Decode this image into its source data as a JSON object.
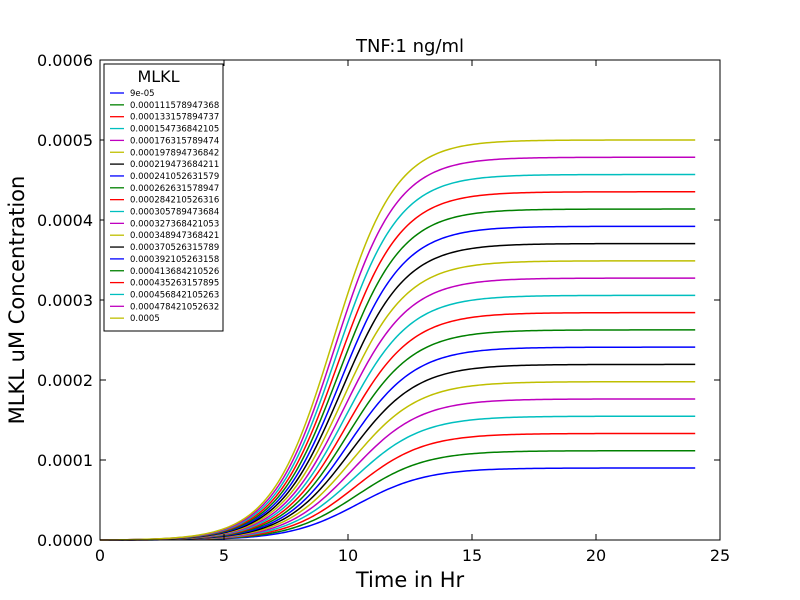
{
  "chart_data": {
    "type": "line",
    "title": "TNF:1 ng/ml",
    "xlabel": "Time in Hr",
    "ylabel": "MLKL uM Concentration",
    "xlim": [
      0,
      25
    ],
    "ylim": [
      0,
      0.0006
    ],
    "x_ticks": [
      "0",
      "5",
      "10",
      "15",
      "20",
      "25"
    ],
    "y_ticks": [
      "0.0000",
      "0.0001",
      "0.0002",
      "0.0003",
      "0.0004",
      "0.0005",
      "0.0006"
    ],
    "grid": false,
    "legend": {
      "title": "MLKL",
      "position": "top-left"
    },
    "x_range": [
      0,
      24
    ],
    "curve_shape": {
      "midpoint_hr": {
        "first": 10.4,
        "last": 9.4
      },
      "steepness": {
        "first": 0.72,
        "last": 0.8
      }
    },
    "series": [
      {
        "name": "9e-05",
        "value": 9e-05,
        "color": "#0000ff"
      },
      {
        "name": "0.000111578947368",
        "value": 0.000111578947368,
        "color": "#008000"
      },
      {
        "name": "0.000133157894737",
        "value": 0.000133157894737,
        "color": "#ff0000"
      },
      {
        "name": "0.000154736842105",
        "value": 0.000154736842105,
        "color": "#00bfbf"
      },
      {
        "name": "0.000176315789474",
        "value": 0.000176315789474,
        "color": "#bf00bf"
      },
      {
        "name": "0.000197894736842",
        "value": 0.000197894736842,
        "color": "#bfbf00"
      },
      {
        "name": "0.000219473684211",
        "value": 0.000219473684211,
        "color": "#000000"
      },
      {
        "name": "0.000241052631579",
        "value": 0.000241052631579,
        "color": "#0000ff"
      },
      {
        "name": "0.000262631578947",
        "value": 0.000262631578947,
        "color": "#008000"
      },
      {
        "name": "0.000284210526316",
        "value": 0.000284210526316,
        "color": "#ff0000"
      },
      {
        "name": "0.000305789473684",
        "value": 0.000305789473684,
        "color": "#00bfbf"
      },
      {
        "name": "0.000327368421053",
        "value": 0.000327368421053,
        "color": "#bf00bf"
      },
      {
        "name": "0.000348947368421",
        "value": 0.000348947368421,
        "color": "#bfbf00"
      },
      {
        "name": "0.000370526315789",
        "value": 0.000370526315789,
        "color": "#000000"
      },
      {
        "name": "0.000392105263158",
        "value": 0.000392105263158,
        "color": "#0000ff"
      },
      {
        "name": "0.000413684210526",
        "value": 0.000413684210526,
        "color": "#008000"
      },
      {
        "name": "0.000435263157895",
        "value": 0.000435263157895,
        "color": "#ff0000"
      },
      {
        "name": "0.000456842105263",
        "value": 0.000456842105263,
        "color": "#00bfbf"
      },
      {
        "name": "0.000478421052632",
        "value": 0.000478421052632,
        "color": "#bf00bf"
      },
      {
        "name": "0.0005",
        "value": 0.0005,
        "color": "#bfbf00"
      }
    ]
  }
}
